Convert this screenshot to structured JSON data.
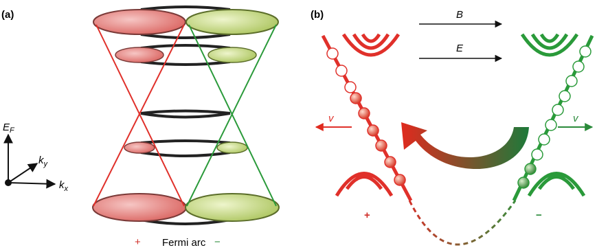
{
  "panel_a": {
    "label": "(a)",
    "axis_e": {
      "main": "E",
      "sub": "F"
    },
    "axis_ky": {
      "main": "k",
      "sub": "y"
    },
    "axis_kx": {
      "main": "k",
      "sub": "x"
    },
    "plus": "+",
    "fermi_arc": "Fermi arc",
    "minus": "−"
  },
  "panel_b": {
    "label": "(b)",
    "field_b": "B",
    "field_e": "E",
    "velocity_left": "v",
    "velocity_right": "v",
    "plus": "+",
    "minus": "−"
  }
}
